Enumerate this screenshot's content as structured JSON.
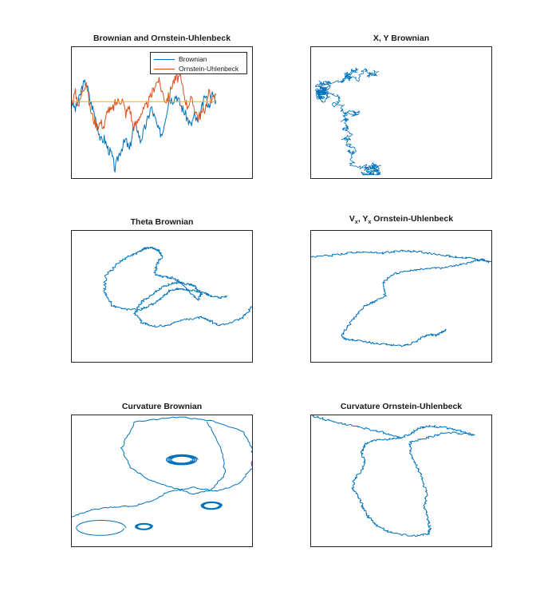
{
  "colors": {
    "blue": "#0072BD",
    "orange": "#D95319",
    "yellow": "#EDB120",
    "axis": "#262626"
  },
  "chart_data": [
    {
      "id": "p1",
      "type": "line",
      "title": "Brownian and Ornstein-Uhlenbeck",
      "legend": {
        "placement": "top-right",
        "entries": [
          "Brownian",
          "Ornstein-Uhlenbeck"
        ]
      },
      "grid": false,
      "xlim": [
        0,
        1000
      ],
      "ylim": [
        -7,
        5
      ],
      "series": [
        {
          "name": "Brownian",
          "color": "blue",
          "x": [
            0,
            20,
            40,
            60,
            80,
            100,
            120,
            140,
            160,
            180,
            200,
            220,
            240,
            260,
            280,
            300,
            320,
            340,
            360,
            380,
            400,
            420,
            440,
            460,
            480,
            500,
            520,
            540,
            560,
            580,
            600,
            620,
            640,
            660,
            680,
            700,
            720,
            740,
            760,
            780,
            800
          ],
          "y": [
            0,
            -0.7,
            0.2,
            1.5,
            1.8,
            0.2,
            -0.8,
            -1.9,
            -3.6,
            -3.4,
            -4.3,
            -4.8,
            -6.2,
            -4.9,
            -4.1,
            -3.5,
            -4.5,
            -2.5,
            -2.2,
            -3.6,
            -2.7,
            -1.7,
            -0.5,
            -1.5,
            -2.6,
            -3.0,
            -1.4,
            0.3,
            0.2,
            0.6,
            -0.2,
            -0.8,
            -1.5,
            -2.2,
            -1.3,
            -2.0,
            -0.7,
            0.6,
            -0.4,
            0.7,
            0.1
          ]
        },
        {
          "name": "Ornstein-Uhlenbeck",
          "color": "orange",
          "x": [
            0,
            20,
            40,
            60,
            80,
            100,
            120,
            140,
            160,
            180,
            200,
            220,
            240,
            260,
            280,
            300,
            320,
            340,
            360,
            380,
            400,
            420,
            440,
            460,
            480,
            500,
            520,
            540,
            560,
            580,
            600,
            620,
            640,
            660,
            680,
            700,
            720,
            740,
            760,
            780,
            800
          ],
          "y": [
            0,
            0.8,
            -0.3,
            1.1,
            1.9,
            -0.5,
            -1.6,
            -2.2,
            -1.9,
            -2.3,
            -0.6,
            -0.9,
            -0.2,
            0.1,
            0.2,
            -1.1,
            -0.4,
            -2.3,
            -2.0,
            -1.1,
            -0.8,
            -0.2,
            0.5,
            1.5,
            2.0,
            1.0,
            0.1,
            0.5,
            1.8,
            2.1,
            2.3,
            0.9,
            -0.4,
            0.2,
            -0.5,
            -1.4,
            -1.1,
            -0.6,
            0.8,
            0.2,
            0.6
          ]
        },
        {
          "name": "",
          "color": "yellow",
          "x": [
            0,
            800
          ],
          "y": [
            0,
            0
          ]
        }
      ]
    },
    {
      "id": "p2",
      "type": "line",
      "title": "X, Y Brownian",
      "grid": false,
      "xlim": [
        -40,
        40
      ],
      "ylim": [
        -40,
        40
      ],
      "series": [
        {
          "color": "blue",
          "walk": {
            "seed": 7,
            "n": 900,
            "step": 1.1,
            "kind": "brownian",
            "start": [
              -10,
              25
            ]
          }
        }
      ]
    },
    {
      "id": "p3",
      "type": "line",
      "title": "Theta Brownian",
      "grid": false,
      "xlim": [
        -1,
        1
      ],
      "ylim": [
        -1,
        1
      ],
      "series": [
        {
          "color": "blue",
          "curve": "theta",
          "x": [
            0.72,
            0.65,
            0.55,
            0.48,
            0.38,
            0.26,
            0.16,
            0.08,
            0.0,
            -0.1,
            -0.24,
            -0.4,
            -0.55,
            -0.64,
            -0.62,
            -0.48,
            -0.35,
            -0.26,
            -0.2,
            -0.18,
            -0.1,
            -0.04,
            0.0,
            -0.06,
            -0.08,
            0.0,
            0.12,
            0.2,
            0.28,
            0.4,
            0.44,
            0.36,
            0.32,
            0.22,
            0.1,
            0.0,
            -0.12,
            -0.22,
            -0.3,
            -0.22,
            -0.1,
            0.06,
            0.24,
            0.44,
            0.55,
            0.62,
            0.76,
            0.9,
            1.0
          ],
          "y": [
            0.0,
            -0.02,
            0.0,
            0.05,
            0.08,
            0.1,
            0.12,
            0.08,
            -0.02,
            -0.12,
            -0.2,
            -0.2,
            -0.14,
            0.06,
            0.32,
            0.52,
            0.62,
            0.68,
            0.72,
            0.74,
            0.74,
            0.7,
            0.62,
            0.46,
            0.34,
            0.3,
            0.28,
            0.22,
            0.1,
            -0.05,
            0.04,
            0.16,
            0.18,
            0.2,
            0.2,
            0.14,
            0.02,
            -0.08,
            -0.26,
            -0.4,
            -0.46,
            -0.44,
            -0.36,
            -0.32,
            -0.38,
            -0.44,
            -0.4,
            -0.32,
            -0.16
          ]
        }
      ]
    },
    {
      "id": "p4",
      "type": "line",
      "title": "Vx, Yx Ornstein-Uhlenbeck",
      "title_main": "V",
      "title_sub1": "x",
      "title_mid": ", Y",
      "title_sub2": "x",
      "title_tail": " Ornstein-Uhlenbeck",
      "grid": false,
      "xlim": [
        -1,
        1
      ],
      "ylim": [
        -1,
        1
      ],
      "series": [
        {
          "color": "blue",
          "curve": "ou",
          "x": [
            -1.0,
            -0.8,
            -0.6,
            -0.4,
            -0.2,
            0.0,
            0.2,
            0.4,
            0.6,
            0.8,
            1.0,
            0.9,
            0.7,
            0.5,
            0.3,
            0.1,
            -0.1,
            -0.2,
            -0.18,
            -0.3,
            -0.4,
            -0.5,
            -0.6,
            -0.66,
            -0.6,
            -0.45,
            -0.3,
            -0.15,
            0.0,
            0.12,
            0.24,
            0.32,
            0.38,
            0.44,
            0.5
          ],
          "y": [
            0.6,
            0.62,
            0.66,
            0.68,
            0.66,
            0.7,
            0.68,
            0.64,
            0.6,
            0.58,
            0.52,
            0.56,
            0.5,
            0.44,
            0.42,
            0.4,
            0.34,
            0.2,
            0.0,
            -0.08,
            -0.14,
            -0.3,
            -0.46,
            -0.62,
            -0.66,
            -0.68,
            -0.72,
            -0.74,
            -0.76,
            -0.72,
            -0.62,
            -0.58,
            -0.6,
            -0.56,
            -0.5
          ]
        }
      ]
    },
    {
      "id": "p5",
      "type": "line",
      "title": "Curvature Brownian",
      "grid": false,
      "xlim": [
        -1,
        1
      ],
      "ylim": [
        -1,
        1
      ],
      "series": [
        {
          "color": "blue",
          "curve": "curv-brownian"
        }
      ]
    },
    {
      "id": "p6",
      "type": "line",
      "title": "Curvature Ornstein-Uhlenbeck",
      "grid": false,
      "xlim": [
        -1,
        1
      ],
      "ylim": [
        -1,
        1
      ],
      "series": [
        {
          "color": "blue",
          "curve": "curv-ou",
          "x": [
            -1.0,
            -0.8,
            -0.6,
            -0.4,
            -0.2,
            0.0,
            0.1,
            0.2,
            0.3,
            0.45,
            0.6,
            0.8,
            0.5,
            0.3,
            0.1,
            0.1,
            0.18,
            0.24,
            0.28,
            0.26,
            0.3,
            0.32,
            0.3,
            0.14,
            -0.1,
            -0.26,
            -0.36,
            -0.42,
            -0.46,
            -0.54,
            -0.52,
            -0.44,
            -0.4,
            -0.44,
            -0.4,
            -0.3,
            -0.1,
            0.0
          ],
          "y": [
            1.0,
            0.92,
            0.86,
            0.8,
            0.74,
            0.66,
            0.72,
            0.8,
            0.84,
            0.82,
            0.78,
            0.7,
            0.74,
            0.66,
            0.6,
            0.4,
            0.2,
            0.0,
            -0.2,
            -0.4,
            -0.6,
            -0.74,
            -0.82,
            -0.84,
            -0.8,
            -0.7,
            -0.56,
            -0.42,
            -0.28,
            -0.12,
            0.02,
            0.16,
            0.3,
            0.44,
            0.56,
            0.62,
            0.64,
            0.66
          ]
        }
      ]
    }
  ]
}
